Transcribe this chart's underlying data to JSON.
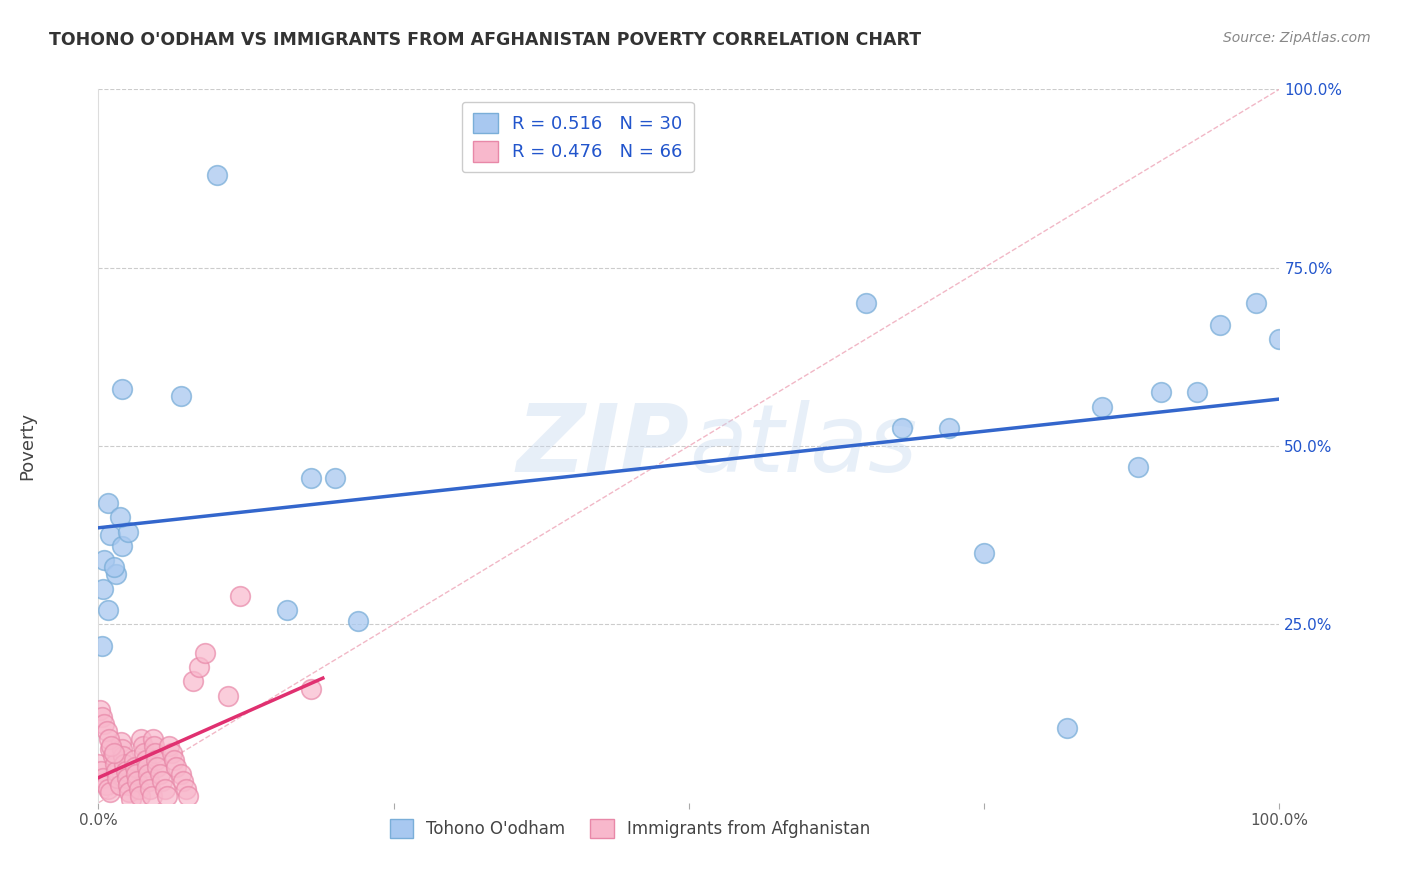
{
  "title": "TOHONO O'ODHAM VS IMMIGRANTS FROM AFGHANISTAN POVERTY CORRELATION CHART",
  "source": "Source: ZipAtlas.com",
  "ylabel": "Poverty",
  "watermark_zip": "ZIP",
  "watermark_atlas": "atlas",
  "xlim": [
    0,
    1.0
  ],
  "ylim": [
    0,
    1.0
  ],
  "series1_name": "Tohono O'odham",
  "series1_R": 0.516,
  "series1_N": 30,
  "series1_color": "#a8c8f0",
  "series1_edge_color": "#7aaed8",
  "series1_line_color": "#3366cc",
  "series2_name": "Immigrants from Afghanistan",
  "series2_R": 0.476,
  "series2_N": 66,
  "series2_color": "#f8b8cc",
  "series2_edge_color": "#e888a8",
  "series2_line_color": "#e03070",
  "background_color": "#ffffff",
  "grid_color": "#cccccc",
  "diag_color": "#f0b0c0",
  "legend_text_color": "#2255cc",
  "legend_r_color": "#2255cc",
  "series1_x": [
    0.07,
    0.02,
    0.01,
    0.008,
    0.005,
    0.004,
    0.015,
    0.02,
    0.025,
    0.018,
    0.013,
    0.008,
    0.003,
    0.1,
    0.18,
    0.2,
    0.16,
    0.22,
    0.65,
    0.68,
    0.72,
    0.75,
    0.85,
    0.88,
    0.9,
    0.93,
    0.95,
    0.98,
    1.0,
    0.82
  ],
  "series1_y": [
    0.57,
    0.58,
    0.375,
    0.42,
    0.34,
    0.3,
    0.32,
    0.36,
    0.38,
    0.4,
    0.33,
    0.27,
    0.22,
    0.88,
    0.455,
    0.455,
    0.27,
    0.255,
    0.7,
    0.525,
    0.525,
    0.35,
    0.555,
    0.47,
    0.575,
    0.575,
    0.67,
    0.7,
    0.65,
    0.105
  ],
  "series2_x": [
    0.0,
    0.002,
    0.004,
    0.006,
    0.008,
    0.01,
    0.01,
    0.012,
    0.014,
    0.015,
    0.016,
    0.018,
    0.019,
    0.02,
    0.021,
    0.022,
    0.023,
    0.024,
    0.025,
    0.026,
    0.028,
    0.03,
    0.031,
    0.032,
    0.033,
    0.034,
    0.035,
    0.036,
    0.038,
    0.039,
    0.04,
    0.041,
    0.042,
    0.043,
    0.044,
    0.045,
    0.046,
    0.047,
    0.048,
    0.049,
    0.05,
    0.052,
    0.054,
    0.056,
    0.058,
    0.06,
    0.062,
    0.064,
    0.066,
    0.07,
    0.072,
    0.074,
    0.076,
    0.001,
    0.003,
    0.005,
    0.007,
    0.009,
    0.011,
    0.013,
    0.12,
    0.11,
    0.08,
    0.085,
    0.09,
    0.18
  ],
  "series2_y": [
    0.055,
    0.045,
    0.035,
    0.025,
    0.02,
    0.015,
    0.075,
    0.065,
    0.055,
    0.045,
    0.035,
    0.025,
    0.085,
    0.075,
    0.065,
    0.055,
    0.045,
    0.035,
    0.025,
    0.015,
    0.005,
    0.06,
    0.05,
    0.04,
    0.03,
    0.02,
    0.01,
    0.09,
    0.08,
    0.07,
    0.06,
    0.05,
    0.04,
    0.03,
    0.02,
    0.01,
    0.09,
    0.08,
    0.07,
    0.06,
    0.05,
    0.04,
    0.03,
    0.02,
    0.01,
    0.08,
    0.07,
    0.06,
    0.05,
    0.04,
    0.03,
    0.02,
    0.01,
    0.13,
    0.12,
    0.11,
    0.1,
    0.09,
    0.08,
    0.07,
    0.29,
    0.15,
    0.17,
    0.19,
    0.21,
    0.16
  ]
}
